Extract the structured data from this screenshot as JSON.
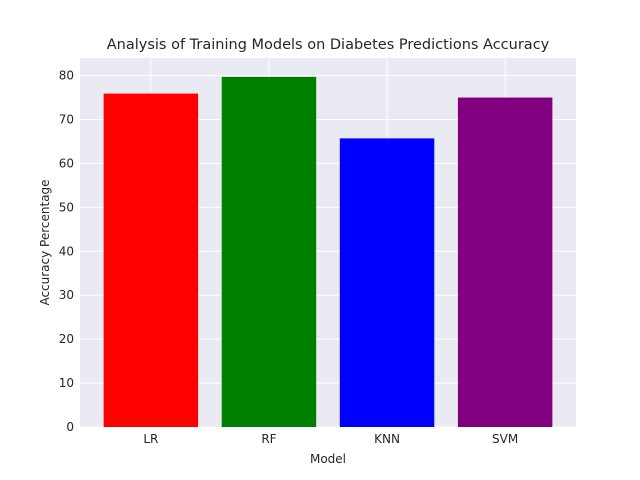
{
  "chart_data": {
    "type": "bar",
    "title": "Analysis of Training Models on Diabetes Predictions Accuracy",
    "xlabel": "Model",
    "ylabel": "Accuracy Percentage",
    "categories": [
      "LR",
      "RF",
      "KNN",
      "SVM"
    ],
    "values": [
      75.9,
      79.7,
      65.7,
      75.0
    ],
    "bar_colors": [
      "#ff0000",
      "#008000",
      "#0000ff",
      "#800080"
    ],
    "ylim": [
      0,
      84
    ],
    "yticks": [
      0,
      10,
      20,
      30,
      40,
      50,
      60,
      70,
      80
    ],
    "grid": true,
    "background_color": "#eaeaf2",
    "grid_color": "#ffffff",
    "legend": "none"
  }
}
